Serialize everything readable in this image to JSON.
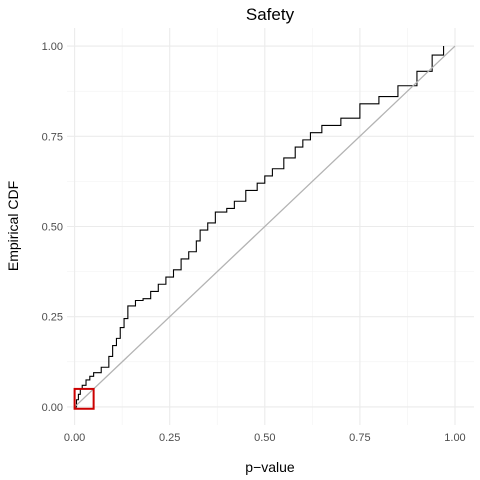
{
  "chart_data": {
    "type": "line",
    "title": "Safety",
    "xlabel": "p−value",
    "ylabel": "Empirical CDF",
    "xlim": [
      -0.02,
      1.05
    ],
    "ylim": [
      -0.05,
      1.05
    ],
    "x_ticks": [
      0,
      0.25,
      0.5,
      0.75,
      1
    ],
    "y_ticks": [
      0,
      0.25,
      0.5,
      0.75,
      1
    ],
    "x_tick_labels": [
      "0.00",
      "0.25",
      "0.50",
      "0.75",
      "1.00"
    ],
    "y_tick_labels": [
      "0.00",
      "0.25",
      "0.50",
      "0.75",
      "1.00"
    ],
    "grid": true,
    "legend": "none",
    "series": [
      {
        "style": "step",
        "color": "#000000",
        "x": [
          0.0,
          0.005,
          0.01,
          0.015,
          0.02,
          0.03,
          0.04,
          0.05,
          0.07,
          0.09,
          0.1,
          0.11,
          0.12,
          0.13,
          0.14,
          0.16,
          0.18,
          0.2,
          0.22,
          0.24,
          0.26,
          0.28,
          0.3,
          0.32,
          0.33,
          0.35,
          0.37,
          0.4,
          0.42,
          0.45,
          0.48,
          0.5,
          0.52,
          0.55,
          0.58,
          0.6,
          0.62,
          0.65,
          0.7,
          0.75,
          0.8,
          0.85,
          0.9,
          0.94,
          0.97
        ],
        "y": [
          0.0,
          0.02,
          0.035,
          0.05,
          0.06,
          0.075,
          0.085,
          0.095,
          0.11,
          0.14,
          0.17,
          0.19,
          0.22,
          0.245,
          0.28,
          0.295,
          0.3,
          0.32,
          0.34,
          0.36,
          0.38,
          0.41,
          0.43,
          0.46,
          0.49,
          0.51,
          0.54,
          0.55,
          0.57,
          0.6,
          0.62,
          0.64,
          0.66,
          0.69,
          0.72,
          0.74,
          0.76,
          0.78,
          0.8,
          0.84,
          0.86,
          0.89,
          0.93,
          0.975,
          1.0
        ]
      },
      {
        "style": "line",
        "color": "#b3b3b3",
        "x": [
          0,
          1
        ],
        "y": [
          0,
          1
        ]
      }
    ],
    "annotations": [
      {
        "type": "rect",
        "color": "#cc0000",
        "x": [
          0,
          0.05
        ],
        "y": [
          -0.005,
          0.05
        ]
      }
    ]
  }
}
